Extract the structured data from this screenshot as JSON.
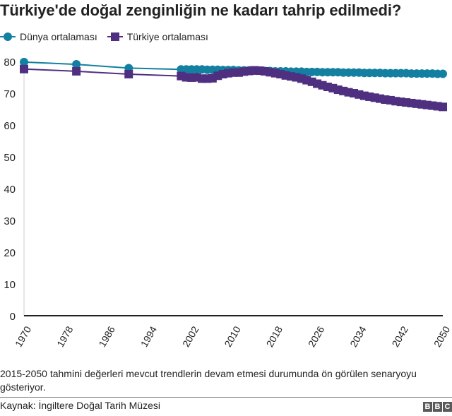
{
  "header": {
    "title": "Türkiye'de doğal zenginliğin ne kadarı tahrip edilmedi?"
  },
  "legend": {
    "items": [
      {
        "label": "Dünya ortalaması",
        "color": "#1380a1",
        "marker": "circle"
      },
      {
        "label": "Türkiye ortalaması",
        "color": "#4f2f80",
        "marker": "square"
      }
    ]
  },
  "footer": {
    "note": "2015-2050 tahmini değerleri mevcut trendlerin devam etmesi durumunda ön görülen senaryoyu gösteriyor.",
    "source": "Kaynak: İngiltere Doğal Tarih Müzesi",
    "logo": [
      "B",
      "B",
      "C"
    ]
  },
  "chart_data": {
    "type": "line",
    "title": "Türkiye'de doğal zenginliğin ne kadarı tahrip edilmedi?",
    "xlabel": "",
    "ylabel": "",
    "ylim": [
      0,
      80
    ],
    "xlim": [
      1970,
      2050
    ],
    "yticks": [
      0,
      10,
      20,
      30,
      40,
      50,
      60,
      70,
      80
    ],
    "xticks": [
      1970,
      1978,
      1986,
      1994,
      2002,
      2010,
      2018,
      2026,
      2034,
      2042,
      2050
    ],
    "grid": false,
    "legend_position": "top-left",
    "annotations": [
      "2015-2050 tahmini değerleri mevcut trendlerin devam etmesi durumunda ön görülen senaryoyu gösteriyor."
    ],
    "series": [
      {
        "name": "Dünya ortalaması",
        "color": "#1380a1",
        "marker": "circle",
        "x": [
          1970,
          1980,
          1990,
          2000,
          2001,
          2002,
          2003,
          2004,
          2005,
          2006,
          2007,
          2008,
          2009,
          2010,
          2011,
          2012,
          2013,
          2014,
          2015,
          2016,
          2017,
          2018,
          2019,
          2020,
          2021,
          2022,
          2023,
          2024,
          2025,
          2026,
          2027,
          2028,
          2029,
          2030,
          2031,
          2032,
          2033,
          2034,
          2035,
          2036,
          2037,
          2038,
          2039,
          2040,
          2041,
          2042,
          2043,
          2044,
          2045,
          2046,
          2047,
          2048,
          2049,
          2050
        ],
        "values": [
          79.8,
          79.1,
          77.9,
          77.5,
          77.5,
          77.5,
          77.5,
          77.5,
          77.4,
          77.4,
          77.4,
          77.3,
          77.3,
          77.3,
          77.2,
          77.2,
          77.2,
          77.1,
          77.1,
          77.0,
          77.0,
          76.9,
          76.9,
          76.9,
          76.8,
          76.8,
          76.8,
          76.7,
          76.7,
          76.7,
          76.6,
          76.6,
          76.6,
          76.6,
          76.5,
          76.5,
          76.5,
          76.5,
          76.4,
          76.4,
          76.4,
          76.4,
          76.3,
          76.3,
          76.3,
          76.3,
          76.3,
          76.2,
          76.2,
          76.2,
          76.2,
          76.2,
          76.1,
          76.1
        ]
      },
      {
        "name": "Türkiye ortalaması",
        "color": "#4f2f80",
        "marker": "square",
        "x": [
          1970,
          1980,
          1990,
          2000,
          2001,
          2002,
          2003,
          2004,
          2005,
          2006,
          2007,
          2008,
          2009,
          2010,
          2011,
          2012,
          2013,
          2014,
          2015,
          2016,
          2017,
          2018,
          2019,
          2020,
          2021,
          2022,
          2023,
          2024,
          2025,
          2026,
          2027,
          2028,
          2029,
          2030,
          2031,
          2032,
          2033,
          2034,
          2035,
          2036,
          2037,
          2038,
          2039,
          2040,
          2041,
          2042,
          2043,
          2044,
          2045,
          2046,
          2047,
          2048,
          2049,
          2050
        ],
        "values": [
          77.6,
          76.9,
          76.0,
          75.4,
          75.0,
          74.9,
          75.0,
          74.6,
          74.6,
          74.7,
          75.5,
          76.0,
          76.3,
          76.5,
          76.5,
          76.8,
          77.0,
          77.2,
          77.1,
          76.9,
          76.6,
          76.3,
          76.0,
          75.6,
          75.3,
          75.0,
          74.6,
          74.1,
          73.6,
          73.0,
          72.5,
          72.0,
          71.6,
          71.1,
          70.7,
          70.3,
          70.0,
          69.6,
          69.2,
          68.9,
          68.6,
          68.3,
          68.0,
          67.8,
          67.5,
          67.3,
          67.1,
          66.9,
          66.7,
          66.5,
          66.3,
          66.1,
          65.9,
          65.7
        ]
      }
    ]
  }
}
